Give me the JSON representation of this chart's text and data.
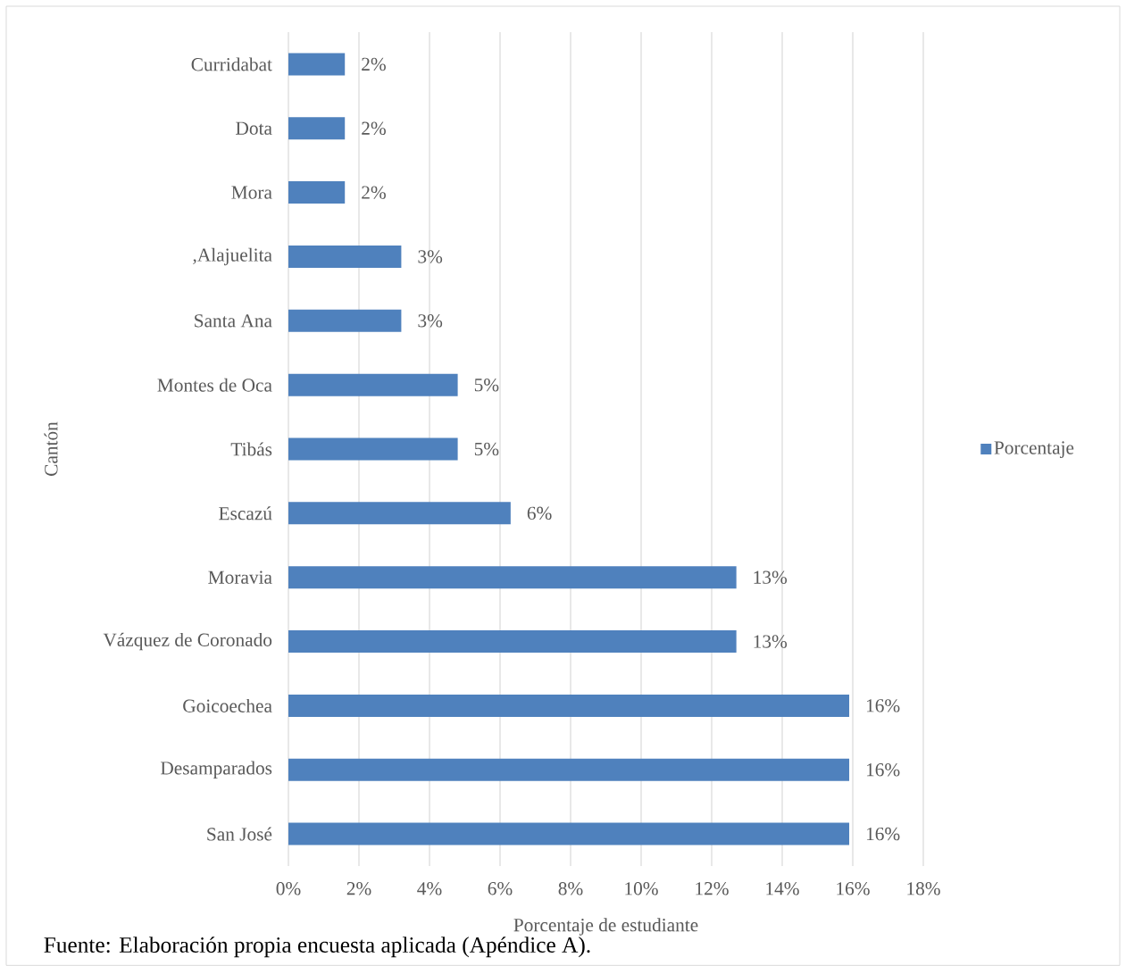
{
  "chart_data": {
    "type": "bar",
    "orientation": "horizontal",
    "xlabel": "Porcentaje de estudiante",
    "ylabel": "Cantón",
    "categories": [
      "Curridabat",
      "Dota",
      "Mora",
      ",Alajuelita",
      "Santa Ana",
      "Montes de Oca",
      "Tibás",
      "Escazú",
      "Moravia",
      "Vázquez de Coronado",
      "Goicoechea",
      "Desamparados",
      "San José"
    ],
    "series": [
      {
        "name": "Porcentaje",
        "color": "#4f81bd",
        "values": [
          1.6,
          1.6,
          1.6,
          3.2,
          3.2,
          4.8,
          4.8,
          6.3,
          12.7,
          12.7,
          15.9,
          15.9,
          15.9
        ],
        "value_labels": [
          "2%",
          "2%",
          "2%",
          "3%",
          "3%",
          "5%",
          "5%",
          "6%",
          "13%",
          "13%",
          "16%",
          "16%",
          "16%"
        ]
      }
    ],
    "xlim": [
      0,
      18
    ],
    "xticks": [
      {
        "value": 0,
        "label": "0%"
      },
      {
        "value": 2,
        "label": "2%"
      },
      {
        "value": 4,
        "label": "4%"
      },
      {
        "value": 6,
        "label": "6%"
      },
      {
        "value": 8,
        "label": "8%"
      },
      {
        "value": 10,
        "label": "10%"
      },
      {
        "value": 12,
        "label": "12%"
      },
      {
        "value": 14,
        "label": "14%"
      },
      {
        "value": 16,
        "label": "16%"
      },
      {
        "value": 18,
        "label": "18%"
      }
    ],
    "grid": "x",
    "legend": "right",
    "annotations": [
      "Fuente: Elaboración propia encuesta aplicada (Apéndice A)."
    ]
  }
}
